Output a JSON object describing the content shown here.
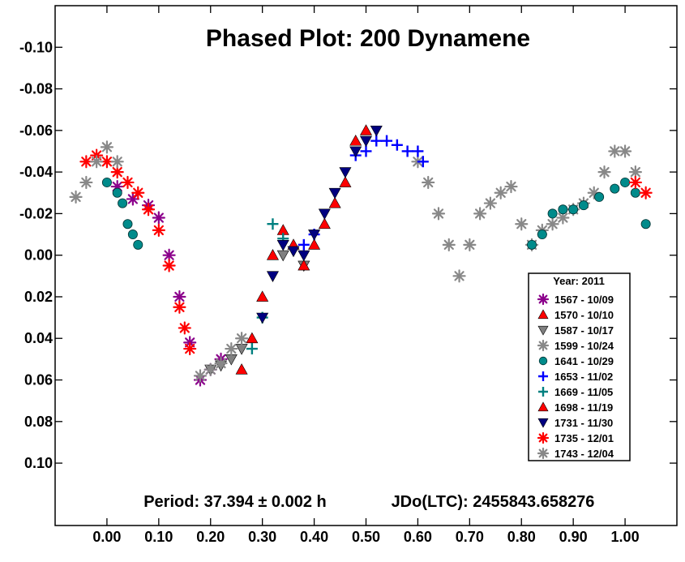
{
  "chart_data": {
    "type": "scatter",
    "title": "Phased Plot: 200 Dynamene",
    "period_text": "Period: 37.394 ± 0.002 h",
    "epoch_text": "JDo(LTC): 2455843.658276",
    "xlim": [
      -0.1,
      1.1
    ],
    "ylim": [
      0.13,
      -0.12
    ],
    "y_inverted": true,
    "x_ticks": [
      0.0,
      0.1,
      0.2,
      0.3,
      0.4,
      0.5,
      0.6,
      0.7,
      0.8,
      0.9,
      1.0
    ],
    "x_tick_labels": [
      "0.00",
      "0.10",
      "0.20",
      "0.30",
      "0.40",
      "0.50",
      "0.60",
      "0.70",
      "0.80",
      "0.90",
      "1.00"
    ],
    "y_ticks": [
      -0.1,
      -0.08,
      -0.06,
      -0.04,
      -0.02,
      0.0,
      0.02,
      0.04,
      0.06,
      0.08,
      0.1
    ],
    "y_tick_labels": [
      "-0.10",
      "-0.08",
      "-0.06",
      "-0.04",
      "-0.02",
      "0.00",
      "0.02",
      "0.04",
      "0.06",
      "0.08",
      "0.10"
    ],
    "legend": {
      "title": "Year: 2011",
      "placement": "lower-right"
    },
    "series": [
      {
        "name": "1567 - 10/09",
        "marker": "asterisk",
        "color": "#8B008B",
        "x": [
          0.02,
          0.05,
          0.08,
          0.1,
          0.12,
          0.14,
          0.16,
          0.18,
          0.2,
          0.22
        ],
        "y": [
          -0.033,
          -0.027,
          -0.024,
          -0.018,
          0.0,
          0.02,
          0.042,
          0.06,
          0.055,
          0.05
        ]
      },
      {
        "name": "1570 - 10/10",
        "marker": "triangle-up",
        "color": "#FF0000",
        "x": [
          0.26,
          0.28,
          0.3,
          0.32,
          0.34,
          0.36
        ],
        "y": [
          0.055,
          0.04,
          0.02,
          0.0,
          -0.012,
          -0.005
        ]
      },
      {
        "name": "1587 - 10/17",
        "marker": "triangle-down",
        "color": "#808080",
        "x": [
          0.2,
          0.22,
          0.24,
          0.26,
          0.34,
          0.38
        ],
        "y": [
          0.055,
          0.053,
          0.05,
          0.045,
          0.0,
          0.005
        ]
      },
      {
        "name": "1599 - 10/24",
        "marker": "asterisk",
        "color": "#888888",
        "x": [
          0.6,
          0.62,
          0.64,
          0.66,
          0.68,
          0.7,
          0.72,
          0.74,
          0.76,
          0.78,
          0.8,
          0.82,
          0.84,
          0.86,
          0.88,
          0.9,
          0.92,
          0.94,
          0.96,
          0.98,
          1.0,
          1.02
        ],
        "y": [
          -0.045,
          -0.035,
          -0.02,
          -0.005,
          0.01,
          -0.005,
          -0.02,
          -0.025,
          -0.03,
          -0.033,
          -0.015,
          -0.005,
          -0.012,
          -0.015,
          -0.018,
          -0.022,
          -0.025,
          -0.03,
          -0.04,
          -0.05,
          -0.05,
          -0.04
        ]
      },
      {
        "name": "1641 - 10/29",
        "marker": "circle",
        "color": "#008B8B",
        "x": [
          0.0,
          0.02,
          0.03,
          0.04,
          0.05,
          0.06,
          0.82,
          0.84,
          0.86,
          0.88,
          0.9,
          0.92,
          0.95,
          0.98,
          1.0,
          1.02,
          1.04
        ],
        "y": [
          -0.035,
          -0.03,
          -0.025,
          -0.015,
          -0.01,
          -0.005,
          -0.005,
          -0.01,
          -0.02,
          -0.022,
          -0.022,
          -0.024,
          -0.028,
          -0.032,
          -0.035,
          -0.03,
          -0.015
        ]
      },
      {
        "name": "1653 - 11/02",
        "marker": "plus",
        "color": "#0000FF",
        "x": [
          0.38,
          0.4,
          0.48,
          0.5,
          0.52,
          0.54,
          0.56,
          0.58,
          0.6,
          0.61
        ],
        "y": [
          -0.005,
          -0.01,
          -0.048,
          -0.05,
          -0.055,
          -0.055,
          -0.053,
          -0.05,
          -0.05,
          -0.045
        ]
      },
      {
        "name": "1669 - 11/05",
        "marker": "plus",
        "color": "#008080",
        "x": [
          0.28,
          0.3,
          0.32,
          0.34
        ],
        "y": [
          0.045,
          0.03,
          -0.015,
          -0.008
        ]
      },
      {
        "name": "1698 - 11/19",
        "marker": "triangle-up",
        "color": "#FF0000",
        "x": [
          0.38,
          0.4,
          0.42,
          0.44,
          0.46,
          0.48,
          0.5
        ],
        "y": [
          0.005,
          -0.005,
          -0.015,
          -0.025,
          -0.035,
          -0.055,
          -0.06
        ]
      },
      {
        "name": "1731 - 11/30",
        "marker": "triangle-down",
        "color": "#000080",
        "x": [
          0.3,
          0.32,
          0.34,
          0.36,
          0.38,
          0.4,
          0.42,
          0.44,
          0.46,
          0.48,
          0.5,
          0.52
        ],
        "y": [
          0.03,
          0.01,
          -0.005,
          -0.002,
          0.0,
          -0.01,
          -0.02,
          -0.03,
          -0.04,
          -0.05,
          -0.055,
          -0.06
        ]
      },
      {
        "name": "1735 - 12/01",
        "marker": "asterisk",
        "color": "#FF0000",
        "x": [
          -0.04,
          -0.02,
          0.0,
          0.02,
          0.04,
          0.06,
          0.08,
          0.1,
          0.12,
          0.14,
          0.15,
          0.16,
          1.02,
          1.04
        ],
        "y": [
          -0.045,
          -0.048,
          -0.045,
          -0.04,
          -0.035,
          -0.03,
          -0.022,
          -0.012,
          0.005,
          0.025,
          0.035,
          0.045,
          -0.035,
          -0.03
        ]
      },
      {
        "name": "1743 - 12/04",
        "marker": "asterisk",
        "color": "#888888",
        "x": [
          -0.06,
          -0.04,
          -0.02,
          0.0,
          0.02,
          0.18,
          0.2,
          0.22,
          0.24,
          0.26
        ],
        "y": [
          -0.028,
          -0.035,
          -0.045,
          -0.052,
          -0.045,
          0.058,
          0.055,
          0.052,
          0.045,
          0.04
        ]
      }
    ]
  }
}
